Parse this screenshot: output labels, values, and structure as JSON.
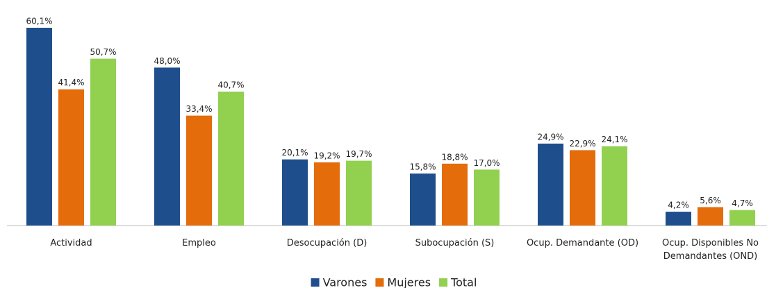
{
  "chart_data": {
    "type": "bar",
    "categories": [
      "Actividad",
      "Empleo",
      "Desocupación (D)",
      "Subocupación (S)",
      "Ocup. Demandante (OD)",
      "Ocup. Disponibles No Demandantes (OND)"
    ],
    "series": [
      {
        "name": "Varones",
        "color": "#1f4e8c",
        "values": [
          60.1,
          48.0,
          20.1,
          15.8,
          24.9,
          4.2
        ],
        "value_labels": [
          "60,1%",
          "48,0%",
          "20,1%",
          "15,8%",
          "24,9%",
          "4,2%"
        ]
      },
      {
        "name": "Mujeres",
        "color": "#e46c0a",
        "values": [
          41.4,
          33.4,
          19.2,
          18.8,
          22.9,
          5.6
        ],
        "value_labels": [
          "41,4%",
          "33,4%",
          "19,2%",
          "18,8%",
          "22,9%",
          "5,6%"
        ]
      },
      {
        "name": "Total",
        "color": "#92d050",
        "values": [
          50.7,
          40.7,
          19.7,
          17.0,
          24.1,
          4.7
        ],
        "value_labels": [
          "50,7%",
          "40,7%",
          "19,7%",
          "17,0%",
          "24,1%",
          "4,7%"
        ]
      }
    ],
    "legend": "bottom"
  }
}
